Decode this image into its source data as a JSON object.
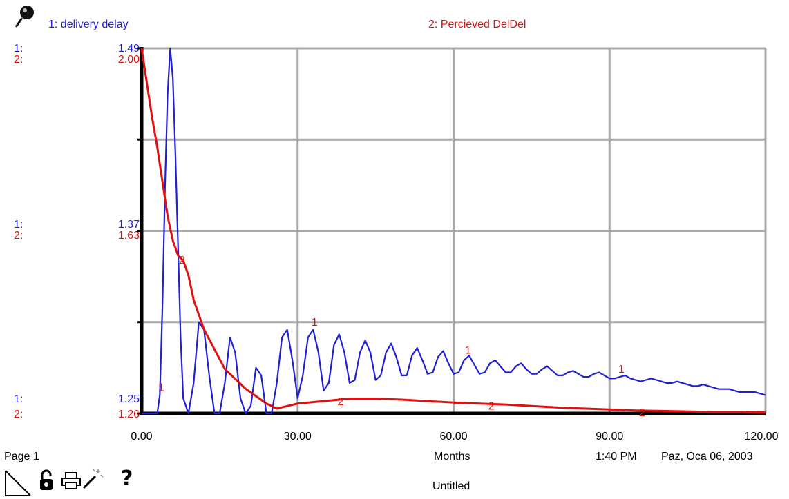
{
  "series_labels": {
    "s1": "1: delivery delay",
    "s2": "2: Percieved DelDel"
  },
  "axis_labels": {
    "top": {
      "p1": "1:",
      "v1": "1.49",
      "p2": "2:",
      "v2": "2.00"
    },
    "mid": {
      "p1": "1:",
      "v1": "1.37",
      "p2": "2:",
      "v2": "1.63"
    },
    "bottom": {
      "p1": "1:",
      "v1": "1.25",
      "p2": "2:",
      "v2": "1.26"
    }
  },
  "x_ticks": [
    "0.00",
    "30.00",
    "60.00",
    "90.00",
    "120.00"
  ],
  "footer": {
    "page": "Page 1",
    "units": "Months",
    "time": "1:40 PM",
    "date": "Paz, Oca 06, 2003",
    "doc_title": "Untitled"
  },
  "icons": [
    "pin-icon",
    "corner-triangle-icon",
    "lock-icon",
    "printer-icon",
    "magic-wand-icon",
    "help-icon"
  ],
  "colors": {
    "series1": "#1f1fd6",
    "series2": "#e01010",
    "grid": "#a8a8a8",
    "axis": "#000000"
  },
  "chart_data": {
    "type": "line",
    "x_range": [
      0,
      120
    ],
    "x_ticks": [
      0,
      30,
      60,
      90,
      120
    ],
    "xlabel": "Months",
    "grid": true,
    "series": [
      {
        "name": "1: delivery delay",
        "color": "#1f1fd6",
        "y_range": [
          1.25,
          1.49
        ],
        "x": [
          0,
          3,
          3.5,
          4,
          4.5,
          5,
          5.5,
          6,
          6.5,
          7,
          7.5,
          8,
          9,
          10,
          11,
          12,
          13,
          14,
          15,
          16,
          17,
          18,
          19,
          20,
          21,
          22,
          23,
          24,
          25,
          26,
          27,
          28,
          29,
          30,
          31,
          32,
          33,
          34,
          35,
          36,
          37,
          38,
          39,
          40,
          41,
          42,
          43,
          44,
          45,
          46,
          47,
          48,
          49,
          50,
          51,
          52,
          53,
          54,
          55,
          56,
          57,
          58,
          59,
          60,
          61,
          62,
          63,
          64,
          65,
          66,
          67,
          68,
          69,
          70,
          71,
          72,
          73,
          74,
          75,
          76,
          77,
          78,
          79,
          80,
          81,
          82,
          83,
          84,
          85,
          86,
          87,
          88,
          89,
          90,
          91,
          92,
          93,
          94,
          95,
          96,
          97,
          98,
          99,
          100,
          101,
          102,
          103,
          104,
          105,
          106,
          107,
          108,
          109,
          110,
          111,
          112,
          113,
          114,
          115,
          116,
          117,
          118,
          119,
          120
        ],
        "y": [
          1.25,
          1.25,
          1.262,
          1.32,
          1.4,
          1.46,
          1.49,
          1.47,
          1.42,
          1.36,
          1.3,
          1.26,
          1.25,
          1.27,
          1.31,
          1.305,
          1.275,
          1.25,
          1.25,
          1.27,
          1.3,
          1.29,
          1.26,
          1.25,
          1.255,
          1.28,
          1.275,
          1.25,
          1.25,
          1.27,
          1.3,
          1.305,
          1.285,
          1.26,
          1.275,
          1.3,
          1.305,
          1.29,
          1.265,
          1.27,
          1.295,
          1.302,
          1.29,
          1.27,
          1.272,
          1.29,
          1.298,
          1.29,
          1.272,
          1.275,
          1.29,
          1.296,
          1.287,
          1.275,
          1.275,
          1.288,
          1.293,
          1.285,
          1.276,
          1.277,
          1.287,
          1.291,
          1.283,
          1.276,
          1.277,
          1.285,
          1.288,
          1.282,
          1.276,
          1.277,
          1.283,
          1.285,
          1.281,
          1.277,
          1.277,
          1.281,
          1.283,
          1.279,
          1.276,
          1.276,
          1.279,
          1.281,
          1.278,
          1.275,
          1.275,
          1.277,
          1.278,
          1.276,
          1.274,
          1.274,
          1.276,
          1.277,
          1.275,
          1.273,
          1.273,
          1.274,
          1.275,
          1.273,
          1.272,
          1.271,
          1.272,
          1.273,
          1.272,
          1.271,
          1.27,
          1.27,
          1.271,
          1.27,
          1.269,
          1.268,
          1.268,
          1.269,
          1.268,
          1.267,
          1.266,
          1.266,
          1.266,
          1.265,
          1.264,
          1.264,
          1.264,
          1.264,
          1.263,
          1.262
        ]
      },
      {
        "name": "2: Percieved DelDel",
        "color": "#e01010",
        "y_range": [
          1.26,
          2.0
        ],
        "x": [
          0,
          1,
          2,
          3,
          4,
          5,
          6,
          7,
          8,
          9,
          10,
          11,
          12,
          14,
          16,
          18,
          20,
          22,
          24,
          26,
          28,
          30,
          35,
          40,
          45,
          50,
          55,
          60,
          65,
          70,
          75,
          80,
          85,
          90,
          95,
          100,
          105,
          110,
          115,
          120
        ],
        "y": [
          2.0,
          1.93,
          1.86,
          1.8,
          1.73,
          1.66,
          1.61,
          1.58,
          1.57,
          1.54,
          1.49,
          1.46,
          1.43,
          1.39,
          1.35,
          1.33,
          1.31,
          1.295,
          1.28,
          1.27,
          1.275,
          1.28,
          1.285,
          1.29,
          1.29,
          1.288,
          1.285,
          1.282,
          1.28,
          1.278,
          1.275,
          1.272,
          1.27,
          1.268,
          1.266,
          1.265,
          1.264,
          1.263,
          1.263,
          1.262
        ]
      }
    ]
  }
}
